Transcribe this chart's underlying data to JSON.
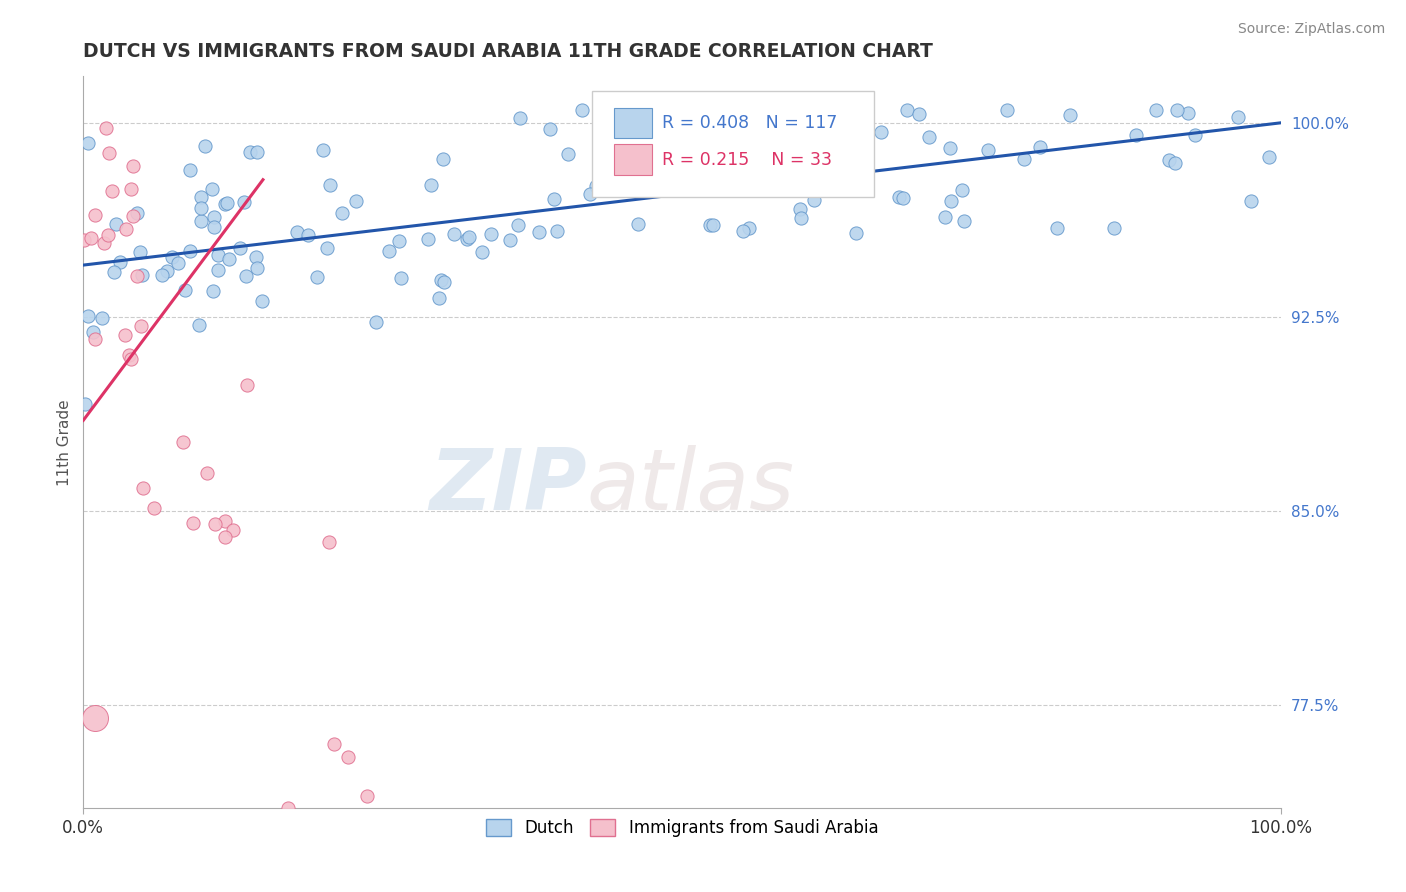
{
  "title": "DUTCH VS IMMIGRANTS FROM SAUDI ARABIA 11TH GRADE CORRELATION CHART",
  "source_text": "Source: ZipAtlas.com",
  "ylabel": "11th Grade",
  "watermark_zip": "ZIP",
  "watermark_atlas": "atlas",
  "legend_label_blue": "Dutch",
  "legend_label_pink": "Immigrants from Saudi Arabia",
  "r_blue": 0.408,
  "n_blue": 117,
  "r_pink": 0.215,
  "n_pink": 33,
  "blue_color": "#b8d4ed",
  "blue_edge_color": "#6699cc",
  "pink_color": "#f5c0cc",
  "pink_edge_color": "#e07090",
  "trend_blue_color": "#2255aa",
  "trend_pink_color": "#dd3366",
  "xmin": 0.0,
  "xmax": 1.0,
  "ymin": 0.735,
  "ymax": 1.018,
  "right_yticks": [
    0.775,
    0.85,
    0.925,
    1.0
  ],
  "right_yticklabels": [
    "77.5%",
    "85.0%",
    "92.5%",
    "100.0%"
  ],
  "hlines_y": [
    0.775,
    0.85,
    0.925,
    1.0
  ],
  "trend_blue_x0": 0.0,
  "trend_blue_y0": 0.945,
  "trend_blue_x1": 1.0,
  "trend_blue_y1": 1.0,
  "trend_pink_x0": 0.0,
  "trend_pink_y0": 0.885,
  "trend_pink_x1": 0.15,
  "trend_pink_y1": 0.978
}
